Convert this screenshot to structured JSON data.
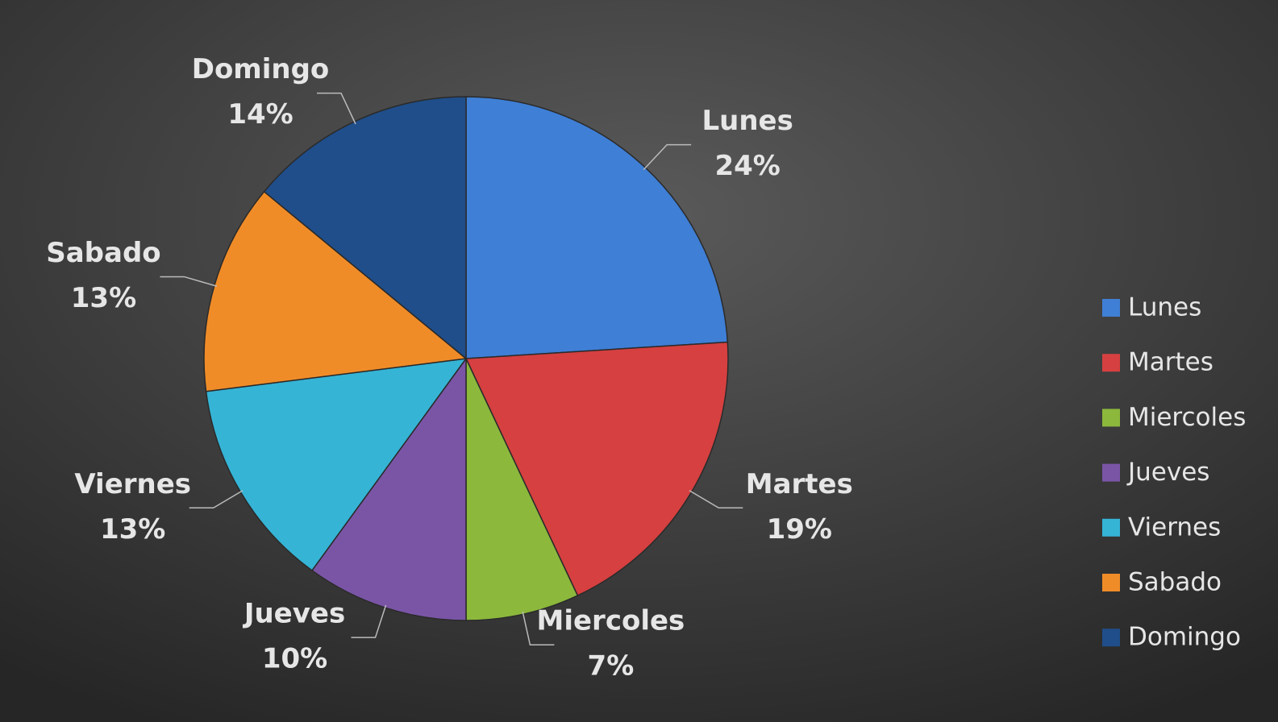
{
  "chart_data": {
    "type": "pie",
    "categories": [
      "Lunes",
      "Martes",
      "Miercoles",
      "Jueves",
      "Viernes",
      "Sabado",
      "Domingo"
    ],
    "values": [
      24,
      19,
      7,
      10,
      13,
      13,
      14
    ],
    "value_labels": [
      "24%",
      "19%",
      "7%",
      "10%",
      "13%",
      "13%",
      "14%"
    ],
    "colors": [
      "#3f7fd6",
      "#d64040",
      "#8cb83c",
      "#7a55a6",
      "#35b4d6",
      "#f08c28",
      "#1f4e8a"
    ],
    "legend": "right"
  }
}
